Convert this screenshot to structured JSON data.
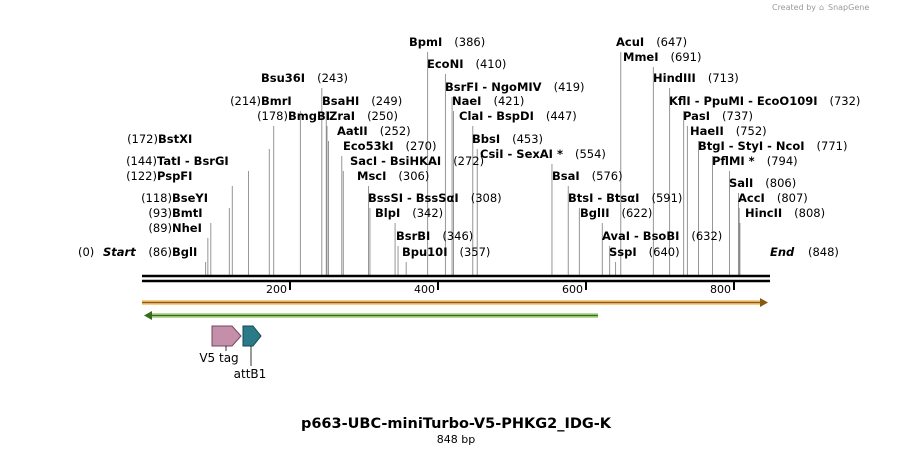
{
  "credit": {
    "prefix": "Created by",
    "brand": "SnapGene"
  },
  "title": "p663-UBC-miniTurbo-V5-PHKG2_IDG-K",
  "length_label": "848 bp",
  "sequence_length": 848,
  "ruler_ticks": [
    200,
    400,
    600,
    800
  ],
  "ends": {
    "start": {
      "label": "Start",
      "pos": "(0)"
    },
    "end": {
      "label": "End",
      "pos": "(848)"
    }
  },
  "sites": [
    {
      "names": [
        "BglI"
      ],
      "pos": 86,
      "pos_text": "(86)"
    },
    {
      "names": [
        "NheI"
      ],
      "pos": 89,
      "pos_text": "(89)"
    },
    {
      "names": [
        "BmtI"
      ],
      "pos": 93,
      "pos_text": "(93)"
    },
    {
      "names": [
        "BseYI"
      ],
      "pos": 118,
      "pos_text": "(118)"
    },
    {
      "names": [
        "PspFI"
      ],
      "pos": 122,
      "pos_text": "(122)"
    },
    {
      "names": [
        "TatI",
        "BsrGI"
      ],
      "pos": 144,
      "pos_text": "(144)"
    },
    {
      "names": [
        "BstXI"
      ],
      "pos": 172,
      "pos_text": "(172)"
    },
    {
      "names": [
        "BmgBI"
      ],
      "pos": 178,
      "pos_text": "(178)"
    },
    {
      "names": [
        "BmrI"
      ],
      "pos": 214,
      "pos_text": "(214)"
    },
    {
      "names": [
        "Bsu36I"
      ],
      "pos": 243,
      "pos_text": "(243)"
    },
    {
      "names": [
        "BsaHI"
      ],
      "pos": 249,
      "pos_text": "(249)"
    },
    {
      "names": [
        "ZraI"
      ],
      "pos": 250,
      "pos_text": "(250)"
    },
    {
      "names": [
        "AatII"
      ],
      "pos": 252,
      "pos_text": "(252)"
    },
    {
      "names": [
        "Eco53kI"
      ],
      "pos": 270,
      "pos_text": "(270)"
    },
    {
      "names": [
        "SacI",
        "BsiHKAI"
      ],
      "pos": 272,
      "pos_text": "(272)"
    },
    {
      "names": [
        "MscI"
      ],
      "pos": 306,
      "pos_text": "(306)"
    },
    {
      "names": [
        "BssSI",
        "BssSαI"
      ],
      "pos": 308,
      "pos_text": "(308)"
    },
    {
      "names": [
        "BlpI"
      ],
      "pos": 342,
      "pos_text": "(342)"
    },
    {
      "names": [
        "BsrBI"
      ],
      "pos": 346,
      "pos_text": "(346)"
    },
    {
      "names": [
        "Bpu10I"
      ],
      "pos": 357,
      "pos_text": "(357)"
    },
    {
      "names": [
        "BpmI"
      ],
      "pos": 386,
      "pos_text": "(386)"
    },
    {
      "names": [
        "EcoNI"
      ],
      "pos": 410,
      "pos_text": "(410)"
    },
    {
      "names": [
        "BsrFI",
        "NgoMIV"
      ],
      "pos": 419,
      "pos_text": "(419)"
    },
    {
      "names": [
        "NaeI"
      ],
      "pos": 421,
      "pos_text": "(421)"
    },
    {
      "names": [
        "ClaI",
        "BspDI"
      ],
      "pos": 447,
      "pos_text": "(447)"
    },
    {
      "names": [
        "BbsI"
      ],
      "pos": 453,
      "pos_text": "(453)"
    },
    {
      "names": [
        "CsiI",
        "SexAI *"
      ],
      "pos": 554,
      "pos_text": "(554)"
    },
    {
      "names": [
        "BsaI"
      ],
      "pos": 576,
      "pos_text": "(576)"
    },
    {
      "names": [
        "BtsI",
        "BtsαI"
      ],
      "pos": 591,
      "pos_text": "(591)"
    },
    {
      "names": [
        "BglII"
      ],
      "pos": 622,
      "pos_text": "(622)"
    },
    {
      "names": [
        "AvaI",
        "BsoBI"
      ],
      "pos": 632,
      "pos_text": "(632)"
    },
    {
      "names": [
        "SspI"
      ],
      "pos": 640,
      "pos_text": "(640)"
    },
    {
      "names": [
        "AcuI"
      ],
      "pos": 647,
      "pos_text": "(647)"
    },
    {
      "names": [
        "MmeI"
      ],
      "pos": 691,
      "pos_text": "(691)"
    },
    {
      "names": [
        "HindIII"
      ],
      "pos": 713,
      "pos_text": "(713)"
    },
    {
      "names": [
        "KflI",
        "PpuMI",
        "EcoO109I"
      ],
      "pos": 732,
      "pos_text": "(732)"
    },
    {
      "names": [
        "PasI"
      ],
      "pos": 737,
      "pos_text": "(737)"
    },
    {
      "names": [
        "HaeII"
      ],
      "pos": 752,
      "pos_text": "(752)"
    },
    {
      "names": [
        "BtgI",
        "StyI",
        "NcoI"
      ],
      "pos": 771,
      "pos_text": "(771)"
    },
    {
      "names": [
        "PflMI *"
      ],
      "pos": 794,
      "pos_text": "(794)"
    },
    {
      "names": [
        "SalI"
      ],
      "pos": 806,
      "pos_text": "(806)"
    },
    {
      "names": [
        "AccI"
      ],
      "pos": 807,
      "pos_text": "(807)"
    },
    {
      "names": [
        "HincII"
      ],
      "pos": 808,
      "pos_text": "(808)"
    }
  ],
  "features": {
    "orange_orf": {
      "start": 0,
      "end": 848,
      "direction": "forward",
      "color": "#f5a623"
    },
    "green_orf": {
      "start": 0,
      "end": 614,
      "direction": "reverse",
      "color": "#7bc043"
    },
    "v5_tag": {
      "label": "V5 tag",
      "start": 95,
      "end": 137,
      "color": "#c58fa9"
    },
    "attB1": {
      "label": "attB1",
      "start": 137,
      "end": 161,
      "color": "#2b7a8a"
    }
  }
}
